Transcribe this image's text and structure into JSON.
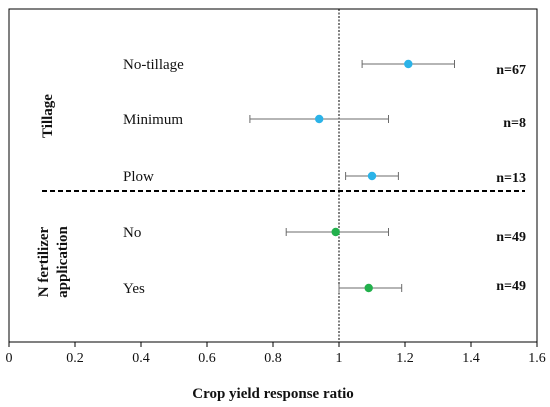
{
  "chart_data": {
    "type": "scatter",
    "title": "",
    "xlabel": "Crop yield response ratio",
    "ylabel": "",
    "xlim": [
      0,
      1.6
    ],
    "xticks": [
      "0",
      "0.2",
      "0.4",
      "0.6",
      "0.8",
      "1",
      "1.2",
      "1.4",
      "1.6"
    ],
    "xtick_values": [
      0,
      0.2,
      0.4,
      0.6,
      0.8,
      1.0,
      1.2,
      1.4,
      1.6
    ],
    "reference_line_x": 1.0,
    "groups": [
      {
        "name": "Tillage",
        "color": "#2bb3e8"
      },
      {
        "name": "N fertilizer application",
        "name_lines": [
          "N fertilizer",
          "application"
        ],
        "color": "#22b04c"
      }
    ],
    "points": [
      {
        "group": 0,
        "label": "No-tillage",
        "mean": 1.21,
        "low": 1.07,
        "high": 1.35,
        "n": "n=67"
      },
      {
        "group": 0,
        "label": "Minimum",
        "mean": 0.94,
        "low": 0.73,
        "high": 1.15,
        "n": "n=8"
      },
      {
        "group": 0,
        "label": "Plow",
        "mean": 1.1,
        "low": 1.02,
        "high": 1.18,
        "n": "n=13"
      },
      {
        "group": 1,
        "label": "No",
        "mean": 0.99,
        "low": 0.84,
        "high": 1.15,
        "n": "n=49"
      },
      {
        "group": 1,
        "label": "Yes",
        "mean": 1.09,
        "low": 1.0,
        "high": 1.19,
        "n": "n=49"
      }
    ]
  }
}
